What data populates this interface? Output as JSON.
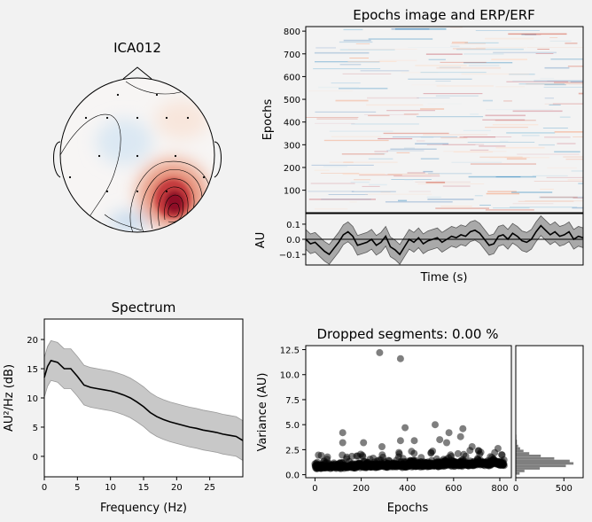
{
  "figure": {
    "background": "#f2f2f2",
    "topomap_title": "ICA012",
    "epochs_title": "Epochs image and ERP/ERF",
    "spectrum_title": "Spectrum",
    "dropped_title": "Dropped segments: 0.00 %"
  },
  "chart_data": [
    {
      "type": "heatmap",
      "name": "topomap",
      "title": "ICA012",
      "sensor_count": 15,
      "peaks": [
        {
          "location": "right-posterior",
          "polarity": "positive",
          "strength": 1.0
        },
        {
          "location": "left-central",
          "polarity": "negative",
          "strength": 0.25
        },
        {
          "location": "frontal",
          "polarity": "positive",
          "strength": 0.2
        },
        {
          "location": "bottom-center",
          "polarity": "negative",
          "strength": 0.3
        }
      ],
      "colormap": [
        "#2166ac",
        "#f7f7f7",
        "#b2182b"
      ]
    },
    {
      "type": "heatmap",
      "name": "epochs-image",
      "title": "Epochs image and ERP/ERF",
      "ylabel": "Epochs",
      "ylim": [
        1,
        820
      ],
      "yticks": [
        100,
        200,
        300,
        400,
        500,
        600,
        700,
        800
      ],
      "n_epochs": 820
    },
    {
      "type": "line",
      "name": "erp",
      "xlabel": "Time (s)",
      "ylabel": "AU",
      "ylim": [
        -0.17,
        0.17
      ],
      "yticks": [
        0.1,
        0.0,
        -0.1
      ],
      "ytick_labels": [
        "0.1",
        "0.0",
        "−0.1"
      ],
      "mean": [
        0.0,
        -0.03,
        -0.02,
        -0.05,
        -0.08,
        -0.1,
        -0.06,
        -0.02,
        0.03,
        0.05,
        0.02,
        -0.04,
        -0.03,
        -0.02,
        0.0,
        -0.04,
        -0.02,
        0.02,
        -0.05,
        -0.07,
        -0.1,
        -0.05,
        0.0,
        -0.02,
        0.01,
        -0.03,
        -0.01,
        0.0,
        0.01,
        -0.02,
        0.0,
        0.02,
        0.01,
        0.03,
        0.02,
        0.05,
        0.06,
        0.04,
        0.0,
        -0.04,
        -0.03,
        0.02,
        0.03,
        0.0,
        0.04,
        0.02,
        -0.01,
        -0.02,
        0.0,
        0.05,
        0.09,
        0.06,
        0.03,
        0.05,
        0.02,
        0.03,
        0.05,
        0.0,
        0.02,
        0.01
      ],
      "ci_halfwidth": 0.065
    },
    {
      "type": "area",
      "name": "spectrum",
      "title": "Spectrum",
      "xlabel": "Frequency (Hz)",
      "ylabel": "AU²/Hz (dB)",
      "xlim": [
        0,
        30
      ],
      "ylim": [
        -3.5,
        23.5
      ],
      "xticks": [
        0,
        5,
        10,
        15,
        20,
        25
      ],
      "yticks": [
        0,
        5,
        10,
        15,
        20
      ],
      "x": [
        0,
        0.5,
        1,
        2,
        3,
        4,
        5,
        6,
        7,
        8,
        9,
        10,
        11,
        12,
        13,
        14,
        15,
        16,
        17,
        18,
        19,
        20,
        21,
        22,
        23,
        24,
        25,
        26,
        27,
        28,
        29,
        30
      ],
      "mean": [
        13.5,
        15.4,
        16.4,
        16.1,
        15.0,
        15.0,
        13.7,
        12.2,
        11.8,
        11.6,
        11.4,
        11.2,
        10.9,
        10.5,
        10.0,
        9.3,
        8.5,
        7.5,
        6.8,
        6.3,
        5.9,
        5.6,
        5.3,
        5.0,
        4.8,
        4.5,
        4.3,
        4.1,
        3.8,
        3.6,
        3.4,
        2.7
      ],
      "ci_halfwidth": 3.4
    },
    {
      "type": "scatter",
      "name": "dropped-segments",
      "title": "Dropped segments: 0.00 %",
      "xlabel": "Epochs",
      "ylabel": "Variance (AU)",
      "xlim": [
        -40,
        850
      ],
      "ylim": [
        -0.3,
        12.9
      ],
      "xticks": [
        0,
        200,
        400,
        600,
        800
      ],
      "yticks": [
        0.0,
        2.5,
        5.0,
        7.5,
        10.0,
        12.5
      ],
      "ytick_labels": [
        "0.0",
        "2.5",
        "5.0",
        "7.5",
        "10.0",
        "12.5"
      ],
      "n_epochs": 820,
      "outliers": [
        [
          280,
          12.2
        ],
        [
          370,
          11.6
        ],
        [
          120,
          4.2
        ],
        [
          120,
          3.2
        ],
        [
          210,
          3.2
        ],
        [
          290,
          2.8
        ],
        [
          390,
          4.7
        ],
        [
          370,
          3.4
        ],
        [
          430,
          3.4
        ],
        [
          520,
          5.0
        ],
        [
          540,
          3.5
        ],
        [
          570,
          3.2
        ],
        [
          580,
          4.2
        ],
        [
          630,
          3.8
        ],
        [
          640,
          4.6
        ],
        [
          680,
          2.8
        ]
      ],
      "histogram": {
        "xlim": [
          0,
          700
        ],
        "xticks": [
          0,
          500
        ],
        "bins": [
          [
            0.0,
            0.25,
            40
          ],
          [
            0.25,
            0.5,
            90
          ],
          [
            0.5,
            0.75,
            250
          ],
          [
            0.75,
            1.0,
            520
          ],
          [
            1.0,
            1.25,
            600
          ],
          [
            1.25,
            1.5,
            560
          ],
          [
            1.5,
            1.75,
            400
          ],
          [
            1.75,
            2.0,
            260
          ],
          [
            2.0,
            2.25,
            140
          ],
          [
            2.25,
            2.5,
            80
          ],
          [
            2.5,
            2.75,
            45
          ],
          [
            2.75,
            3.0,
            25
          ],
          [
            3.0,
            3.5,
            12
          ],
          [
            3.5,
            4.0,
            6
          ],
          [
            4.0,
            5.0,
            4
          ],
          [
            5.0,
            12.5,
            2
          ]
        ]
      }
    }
  ]
}
